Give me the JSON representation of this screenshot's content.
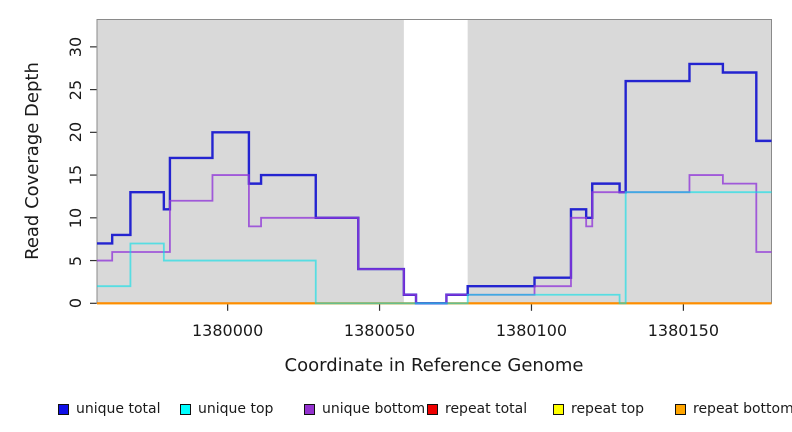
{
  "page": {
    "background": "#ffffff"
  },
  "chart_data": {
    "type": "line",
    "line_style": "step-after",
    "title": "",
    "xlabel": "Coordinate in Reference Genome",
    "ylabel": "Read Coverage Depth",
    "xlim": [
      1379957,
      1380179
    ],
    "ylim": [
      0,
      33.2
    ],
    "x_ticks": [
      1380000,
      1380050,
      1380100,
      1380150
    ],
    "y_ticks": [
      0,
      5,
      10,
      15,
      20,
      25,
      30
    ],
    "grid": false,
    "legend_position": "bottom",
    "plot_background": "#d9d9d9",
    "unshaded_region": {
      "x_start": 1380058,
      "x_end": 1380079,
      "color": "#ffffff"
    },
    "axis_color": "#333333",
    "box_color": "#8a8a8a",
    "draw_order": [
      "repeat total",
      "repeat top",
      "repeat bottom",
      "unique total",
      "unique bottom",
      "unique top"
    ],
    "series": [
      {
        "name": "unique total",
        "color": "#2424d0",
        "legend_color": "#1010e8",
        "opacity": 1,
        "line_width": 2.4,
        "steps": [
          [
            1379957,
            7
          ],
          [
            1379962,
            8
          ],
          [
            1379968,
            13
          ],
          [
            1379979,
            11
          ],
          [
            1379981,
            17
          ],
          [
            1379995,
            20
          ],
          [
            1380007,
            14
          ],
          [
            1380011,
            15
          ],
          [
            1380029,
            10
          ],
          [
            1380043,
            4
          ],
          [
            1380058,
            1
          ],
          [
            1380062,
            0
          ],
          [
            1380072,
            1
          ],
          [
            1380079,
            2
          ],
          [
            1380101,
            3
          ],
          [
            1380113,
            11
          ],
          [
            1380118,
            10
          ],
          [
            1380120,
            14
          ],
          [
            1380129,
            13
          ],
          [
            1380131,
            26
          ],
          [
            1380152,
            28
          ],
          [
            1380163,
            27
          ],
          [
            1380174,
            19
          ]
        ]
      },
      {
        "name": "unique top",
        "color": "#00dfe8",
        "legend_color": "#00ffff",
        "opacity": 0.6,
        "line_width": 1.8,
        "steps": [
          [
            1379957,
            2
          ],
          [
            1379968,
            7
          ],
          [
            1379979,
            5
          ],
          [
            1380029,
            0
          ],
          [
            1380079,
            1
          ],
          [
            1380129,
            0
          ],
          [
            1380131,
            13
          ]
        ]
      },
      {
        "name": "unique bottom",
        "color": "#9138d8",
        "legend_color": "#9432cf",
        "opacity": 0.8,
        "line_width": 1.8,
        "steps": [
          [
            1379957,
            5
          ],
          [
            1379962,
            6
          ],
          [
            1379981,
            12
          ],
          [
            1379995,
            15
          ],
          [
            1380007,
            9
          ],
          [
            1380011,
            10
          ],
          [
            1380043,
            4
          ],
          [
            1380058,
            1
          ],
          [
            1380062,
            0
          ],
          [
            1380072,
            1
          ],
          [
            1380101,
            2
          ],
          [
            1380113,
            10
          ],
          [
            1380118,
            9
          ],
          [
            1380120,
            13
          ],
          [
            1380152,
            15
          ],
          [
            1380163,
            14
          ],
          [
            1380174,
            6
          ]
        ]
      },
      {
        "name": "repeat total",
        "color": "#dd0000",
        "legend_color": "#ee0000",
        "opacity": 1,
        "line_width": 1.8,
        "steps": [
          [
            1379957,
            0
          ]
        ]
      },
      {
        "name": "repeat top",
        "color": "#ffff00",
        "legend_color": "#ffff00",
        "opacity": 1,
        "line_width": 1.8,
        "steps": [
          [
            1379957,
            0
          ]
        ]
      },
      {
        "name": "repeat bottom",
        "color": "#ff8c00",
        "legend_color": "#ffa500",
        "opacity": 1,
        "line_width": 1.8,
        "steps": [
          [
            1379957,
            0
          ]
        ]
      }
    ]
  }
}
